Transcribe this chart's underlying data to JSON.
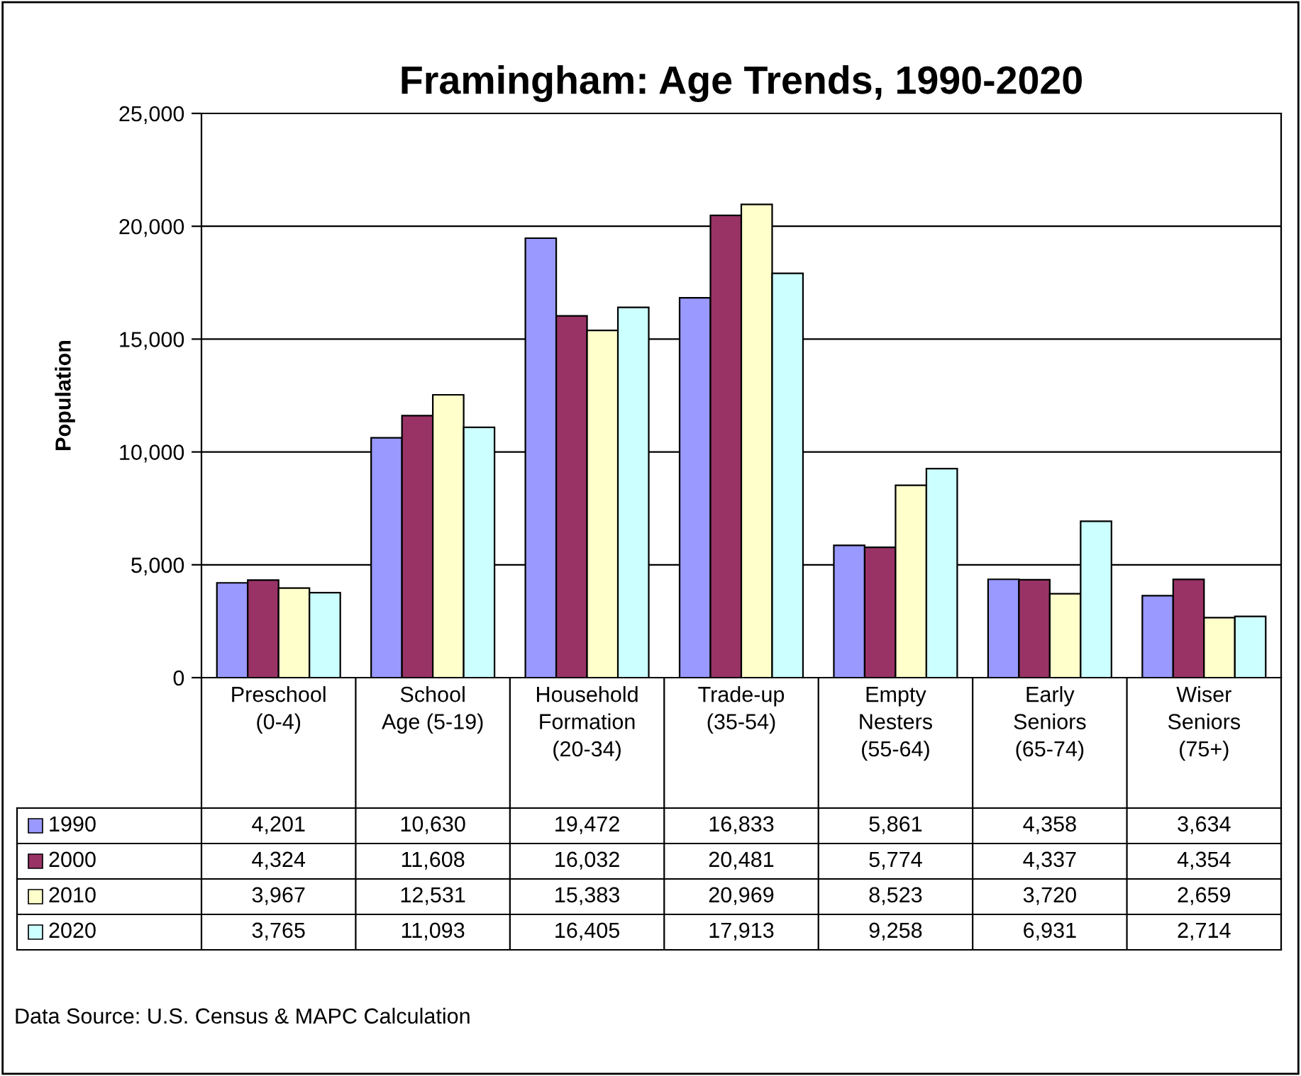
{
  "chart_data": {
    "type": "bar",
    "title": "Framingham: Age Trends, 1990-2020",
    "ylabel": "Population",
    "categories": [
      "Preschool\n(0-4)",
      "School\nAge (5-19)",
      "Household\nFormation\n(20-34)",
      "Trade-up\n(35-54)",
      "Empty\nNesters\n(55-64)",
      "Early\nSeniors\n(65-74)",
      "Wiser\nSeniors\n(75+)"
    ],
    "series": [
      {
        "name": "1990",
        "color": "#9999ff",
        "values": [
          4201,
          10630,
          19472,
          16833,
          5861,
          4358,
          3634
        ],
        "value_labels": [
          "4,201",
          "10,630",
          "19,472",
          "16,833",
          "5,861",
          "4,358",
          "3,634"
        ]
      },
      {
        "name": "2000",
        "color": "#993366",
        "values": [
          4324,
          11608,
          16032,
          20481,
          5774,
          4337,
          4354
        ],
        "value_labels": [
          "4,324",
          "11,608",
          "16,032",
          "20,481",
          "5,774",
          "4,337",
          "4,354"
        ]
      },
      {
        "name": "2010",
        "color": "#ffffcc",
        "values": [
          3967,
          12531,
          15383,
          20969,
          8523,
          3720,
          2659
        ],
        "value_labels": [
          "3,967",
          "12,531",
          "15,383",
          "20,969",
          "8,523",
          "3,720",
          "2,659"
        ]
      },
      {
        "name": "2020",
        "color": "#ccffff",
        "values": [
          3765,
          11093,
          16405,
          17913,
          9258,
          6931,
          2714
        ],
        "value_labels": [
          "3,765",
          "11,093",
          "16,405",
          "17,913",
          "9,258",
          "6,931",
          "2,714"
        ]
      }
    ],
    "ylim": [
      0,
      25000
    ],
    "yticks": [
      0,
      {
        "value": 5000,
        "label": "5,000"
      },
      {
        "value": 10000,
        "label": "10,000"
      },
      {
        "value": 15000,
        "label": "15,000"
      },
      {
        "value": 20000,
        "label": "20,000"
      },
      {
        "value": 25000,
        "label": "25,000"
      }
    ],
    "grid": "y",
    "legend": "bottom left",
    "annotations": [
      "Data Source: U.S. Census & MAPC Calculation"
    ]
  }
}
